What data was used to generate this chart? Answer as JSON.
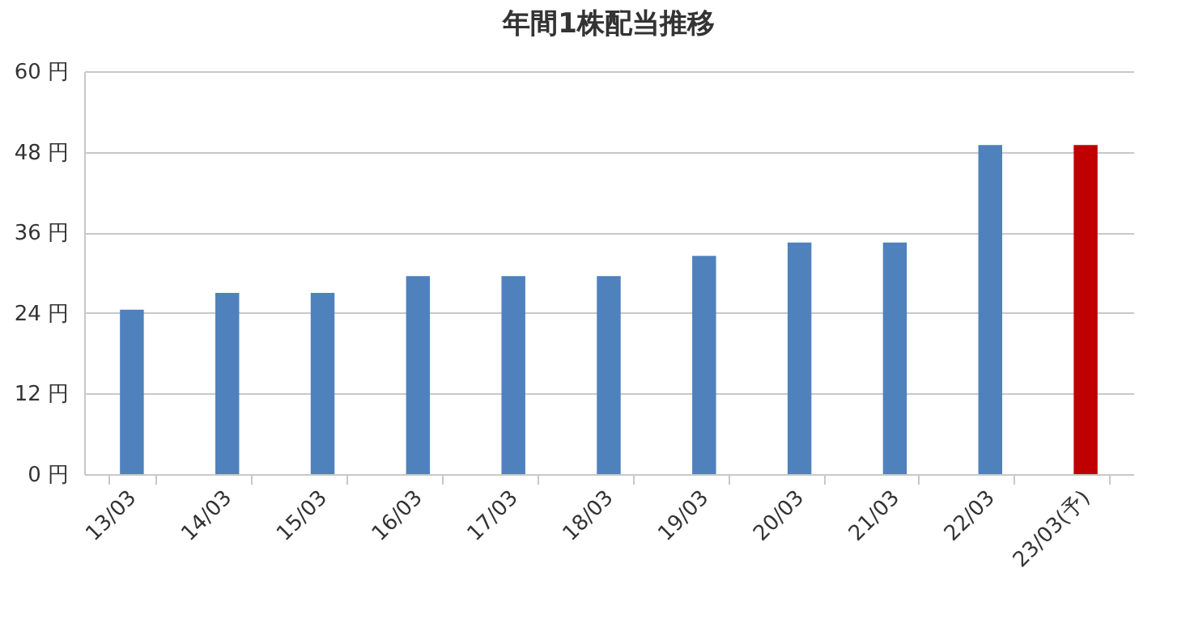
{
  "chart_data": {
    "type": "bar",
    "title": "年間1株配当推移",
    "categories": [
      "13/03",
      "14/03",
      "15/03",
      "16/03",
      "17/03",
      "18/03",
      "19/03",
      "20/03",
      "21/03",
      "22/03",
      "23/03(予)"
    ],
    "values": [
      24.5,
      27,
      27,
      29.5,
      29.5,
      29.5,
      32.5,
      34.5,
      34.5,
      49,
      49
    ],
    "colors": [
      "#4f81bd",
      "#4f81bd",
      "#4f81bd",
      "#4f81bd",
      "#4f81bd",
      "#4f81bd",
      "#4f81bd",
      "#4f81bd",
      "#4f81bd",
      "#4f81bd",
      "#c00000"
    ],
    "ylim": [
      0,
      60
    ],
    "yticks": [
      {
        "value": 0,
        "label": "0 円"
      },
      {
        "value": 12,
        "label": "12 円"
      },
      {
        "value": 24,
        "label": "24 円"
      },
      {
        "value": 36,
        "label": "36 円"
      },
      {
        "value": 48,
        "label": "48 円"
      },
      {
        "value": 60,
        "label": "60 円"
      }
    ],
    "grid": "y"
  }
}
